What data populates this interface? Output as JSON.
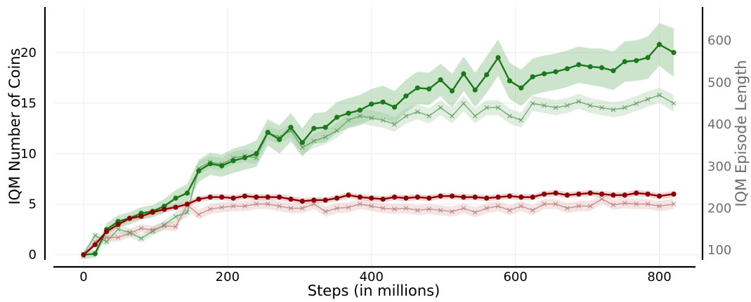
{
  "chart_data": {
    "type": "line",
    "xlabel": "Steps (in millions)",
    "ylabel": "IQM Number of Coins",
    "y2label": "IQM Episode Length",
    "xlim": [
      -40,
      860
    ],
    "ylim": [
      -1.2,
      24.5
    ],
    "y2lim": [
      60,
      680
    ],
    "xticks": [
      0,
      200,
      400,
      600,
      800
    ],
    "yticks": [
      0,
      5,
      10,
      15,
      20
    ],
    "y2ticks": [
      100,
      200,
      300,
      400,
      500,
      600
    ],
    "grid": true,
    "legend": "none",
    "colors": {
      "green_coins": "#1a7a1a",
      "green_length": "#5f9f5f",
      "red_coins": "#8b0000",
      "red_length": "#c08080",
      "green_band": "#8fc08f",
      "red_band": "#d9a0a0",
      "right_axis_text": "#6e6e6e"
    },
    "series": [
      {
        "axis": "left",
        "marker": "circle",
        "color": "#1a7a1a",
        "x": [
          0,
          16,
          32,
          48,
          64,
          80,
          96,
          112,
          128,
          144,
          160,
          176,
          192,
          208,
          224,
          240,
          256,
          272,
          288,
          304,
          320,
          336,
          352,
          368,
          384,
          400,
          416,
          432,
          448,
          464,
          480,
          496,
          512,
          528,
          544,
          560,
          576,
          592,
          608,
          624,
          640,
          656,
          672,
          688,
          704,
          720,
          736,
          752,
          768,
          784,
          800,
          820
        ],
        "values": [
          0,
          0.1,
          2.5,
          3.3,
          3.6,
          4.1,
          4.3,
          4.8,
          5.6,
          6.1,
          8.3,
          9.0,
          8.8,
          9.3,
          9.6,
          10.0,
          12.1,
          11.4,
          12.6,
          11.1,
          12.5,
          12.6,
          13.6,
          14.0,
          14.3,
          14.9,
          15.1,
          14.6,
          15.7,
          16.5,
          16.4,
          17.3,
          16.2,
          17.9,
          16.3,
          17.8,
          19.5,
          17.2,
          16.5,
          17.6,
          17.9,
          18.1,
          18.4,
          18.8,
          18.6,
          18.5,
          18.2,
          19.1,
          19.2,
          19.5,
          20.8,
          20.0
        ],
        "band": [
          0.4,
          0.4,
          0.6,
          0.6,
          0.6,
          0.6,
          0.6,
          0.7,
          0.8,
          0.9,
          1.1,
          1.1,
          1.1,
          1.2,
          1.2,
          1.3,
          1.3,
          1.4,
          1.4,
          1.4,
          1.5,
          1.5,
          1.5,
          1.5,
          1.5,
          1.5,
          1.6,
          1.6,
          1.6,
          1.6,
          1.6,
          1.6,
          1.7,
          1.7,
          1.7,
          1.8,
          1.8,
          1.8,
          1.8,
          1.8,
          1.8,
          1.8,
          1.8,
          1.8,
          1.8,
          1.9,
          1.9,
          2.0,
          2.0,
          2.1,
          2.1,
          2.4
        ]
      },
      {
        "axis": "right",
        "marker": "x",
        "color": "#5f9f5f",
        "x": [
          0,
          16,
          32,
          48,
          64,
          80,
          96,
          112,
          128,
          144,
          160,
          176,
          192,
          208,
          224,
          240,
          256,
          272,
          288,
          304,
          320,
          336,
          352,
          368,
          384,
          400,
          416,
          432,
          448,
          464,
          480,
          496,
          512,
          528,
          544,
          560,
          576,
          592,
          608,
          624,
          640,
          656,
          672,
          688,
          704,
          720,
          736,
          752,
          768,
          784,
          800,
          820
        ],
        "values": [
          90,
          135,
          120,
          150,
          142,
          128,
          145,
          160,
          180,
          190,
          295,
          310,
          305,
          320,
          325,
          320,
          380,
          370,
          385,
          345,
          360,
          370,
          385,
          410,
          420,
          415,
          410,
          400,
          420,
          430,
          420,
          440,
          420,
          450,
          420,
          440,
          440,
          420,
          410,
          450,
          445,
          440,
          445,
          455,
          445,
          440,
          435,
          440,
          450,
          460,
          470,
          450
        ],
        "band": [
          8,
          8,
          10,
          10,
          10,
          10,
          10,
          10,
          12,
          12,
          15,
          15,
          15,
          15,
          15,
          15,
          16,
          16,
          16,
          16,
          17,
          17,
          17,
          17,
          18,
          18,
          18,
          18,
          18,
          18,
          18,
          18,
          18,
          18,
          18,
          18,
          18,
          18,
          18,
          18,
          18,
          18,
          18,
          18,
          18,
          18,
          18,
          18,
          18,
          18,
          18,
          20
        ]
      },
      {
        "axis": "left",
        "marker": "circle",
        "color": "#8b0000",
        "x": [
          0,
          16,
          32,
          48,
          64,
          80,
          96,
          112,
          128,
          144,
          160,
          176,
          192,
          208,
          224,
          240,
          256,
          272,
          288,
          304,
          320,
          336,
          352,
          368,
          384,
          400,
          416,
          432,
          448,
          464,
          480,
          496,
          512,
          528,
          544,
          560,
          576,
          592,
          608,
          624,
          640,
          656,
          672,
          688,
          704,
          720,
          736,
          752,
          768,
          784,
          800,
          820
        ],
        "values": [
          0,
          1.0,
          2.3,
          3.0,
          3.6,
          3.8,
          4.2,
          4.5,
          4.7,
          5.0,
          5.5,
          5.7,
          5.7,
          5.6,
          5.8,
          5.7,
          5.7,
          5.7,
          5.5,
          5.3,
          5.4,
          5.4,
          5.6,
          5.9,
          5.7,
          5.6,
          5.5,
          5.7,
          5.6,
          5.7,
          5.6,
          5.8,
          5.8,
          5.7,
          5.7,
          5.6,
          5.7,
          5.8,
          5.7,
          5.7,
          6.0,
          6.1,
          5.9,
          6.0,
          6.1,
          6.0,
          5.9,
          5.9,
          6.1,
          6.0,
          5.8,
          6.0
        ],
        "band": [
          0.2,
          0.2,
          0.3,
          0.3,
          0.3,
          0.3,
          0.3,
          0.3,
          0.3,
          0.3,
          0.3,
          0.3,
          0.3,
          0.3,
          0.3,
          0.3,
          0.3,
          0.3,
          0.3,
          0.3,
          0.3,
          0.3,
          0.3,
          0.3,
          0.3,
          0.3,
          0.3,
          0.3,
          0.3,
          0.3,
          0.3,
          0.3,
          0.3,
          0.3,
          0.3,
          0.3,
          0.3,
          0.3,
          0.3,
          0.3,
          0.3,
          0.3,
          0.3,
          0.3,
          0.3,
          0.3,
          0.3,
          0.3,
          0.3,
          0.3,
          0.3,
          0.3
        ]
      },
      {
        "axis": "right",
        "marker": "x",
        "color": "#c08080",
        "x": [
          0,
          16,
          32,
          48,
          64,
          80,
          96,
          112,
          128,
          144,
          160,
          176,
          192,
          208,
          224,
          240,
          256,
          272,
          288,
          304,
          320,
          336,
          352,
          368,
          384,
          400,
          416,
          432,
          448,
          464,
          480,
          496,
          512,
          528,
          544,
          560,
          576,
          592,
          608,
          624,
          640,
          656,
          672,
          688,
          704,
          720,
          736,
          752,
          768,
          784,
          800,
          820
        ],
        "values": [
          85,
          120,
          130,
          130,
          140,
          152,
          148,
          158,
          156,
          208,
          185,
          198,
          202,
          205,
          205,
          210,
          210,
          205,
          200,
          200,
          210,
          192,
          200,
          202,
          210,
          205,
          200,
          198,
          200,
          195,
          198,
          195,
          192,
          200,
          190,
          200,
          205,
          195,
          205,
          195,
          210,
          210,
          200,
          205,
          205,
          222,
          208,
          212,
          210,
          210,
          205,
          210
        ],
        "band": [
          6,
          8,
          10,
          10,
          10,
          10,
          10,
          10,
          12,
          12,
          12,
          12,
          12,
          12,
          12,
          12,
          12,
          12,
          12,
          12,
          12,
          12,
          12,
          12,
          12,
          12,
          12,
          12,
          12,
          12,
          12,
          12,
          12,
          12,
          12,
          12,
          12,
          12,
          12,
          12,
          12,
          12,
          12,
          12,
          12,
          12,
          12,
          12,
          12,
          12,
          12,
          12
        ]
      }
    ]
  }
}
